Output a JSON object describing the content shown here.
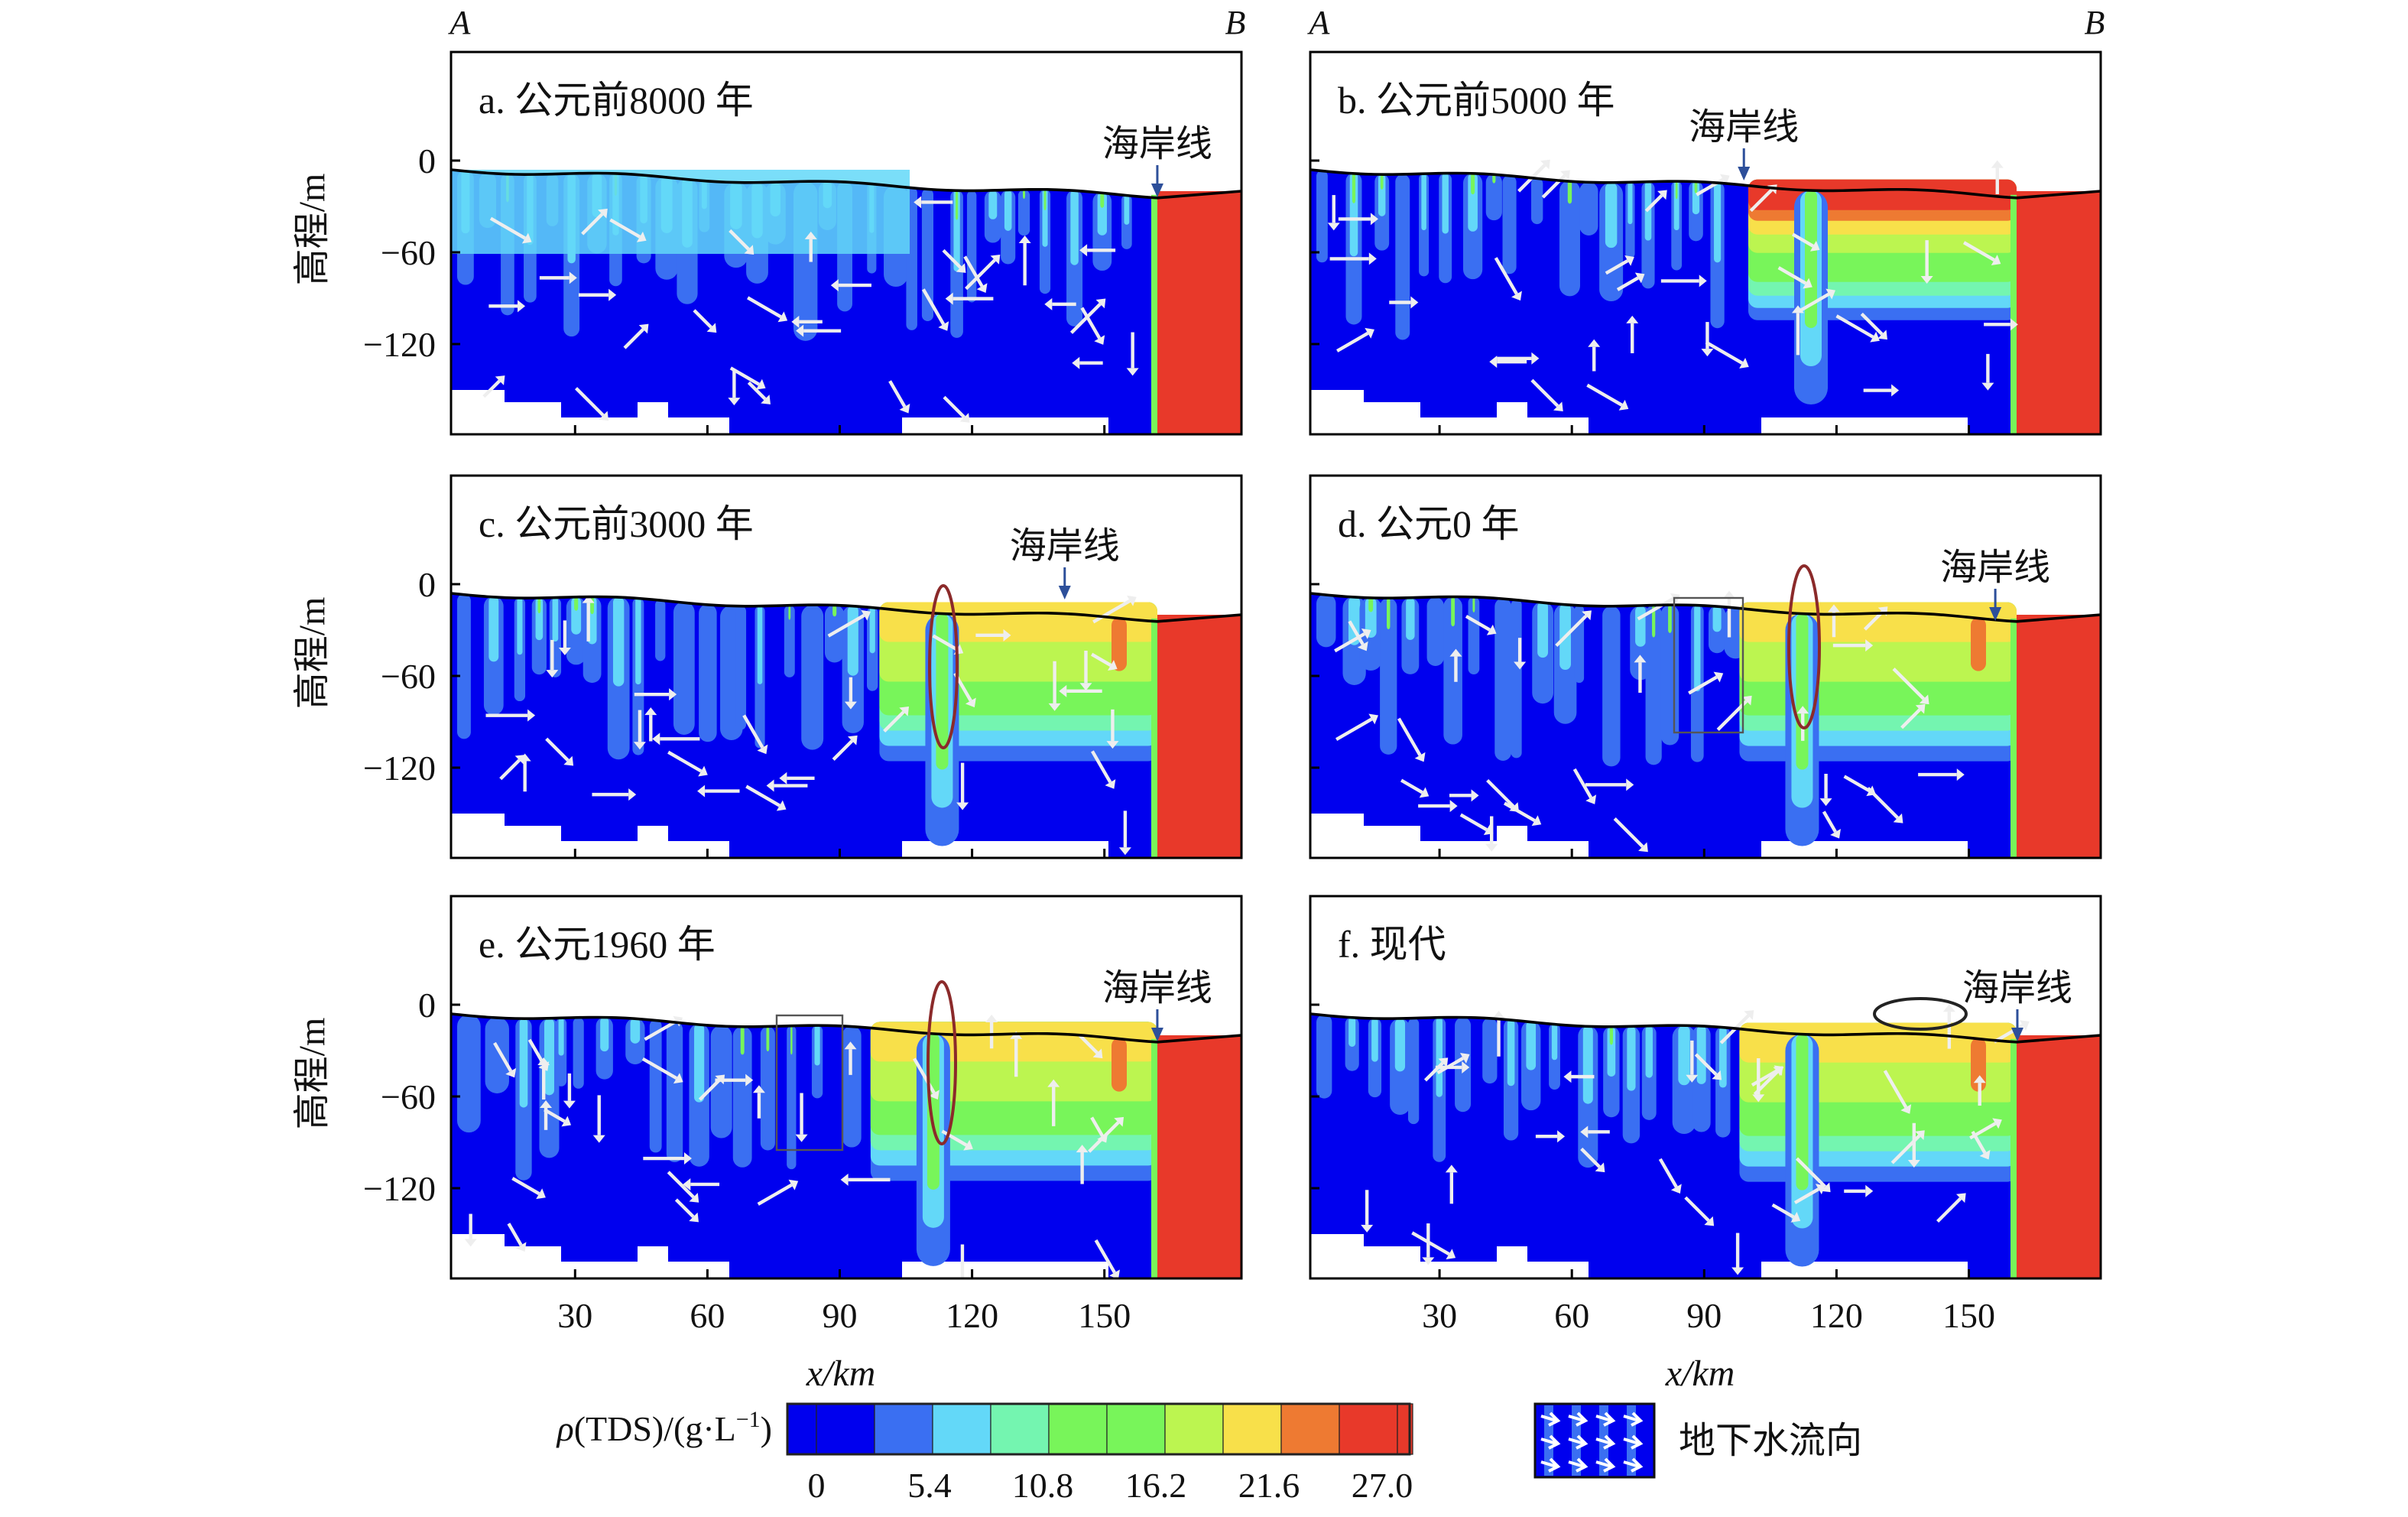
{
  "chart_data": {
    "type": "heatmap",
    "subtype": "filled-contour cross-sections with flow vectors",
    "section_start_label": "A",
    "section_end_label": "B",
    "xlabel": "x/km",
    "ylabel": "高程/m",
    "x_ticks": [
      "30",
      "60",
      "90",
      "120",
      "150"
    ],
    "x_tick_values": [
      30,
      60,
      90,
      120,
      150
    ],
    "y_ticks": [
      "0",
      "−60",
      "−120"
    ],
    "y_tick_values": [
      0,
      -60,
      -120
    ],
    "coastline_label": "海岸线",
    "panels": [
      {
        "id": "a",
        "title": "a. 公元前8000 年",
        "coastline_km": 162,
        "saline_zone_km": null
      },
      {
        "id": "b",
        "title": "b. 公元前5000 年",
        "coastline_km": 99,
        "saline_zone_km": [
          100,
          160
        ]
      },
      {
        "id": "c",
        "title": "c. 公元前3000 年",
        "coastline_km": 141,
        "saline_zone_km": [
          99,
          160
        ]
      },
      {
        "id": "d",
        "title": "d. 公元0 年",
        "coastline_km": 156,
        "saline_zone_km": [
          98,
          160
        ]
      },
      {
        "id": "e",
        "title": "e. 公元1960 年",
        "coastline_km": 162,
        "saline_zone_km": [
          97,
          160
        ]
      },
      {
        "id": "f",
        "title": "f. 现代",
        "coastline_km": 161,
        "saline_zone_km": [
          98,
          161
        ]
      }
    ],
    "colorbar": {
      "label_prefix": "ρ",
      "label": "(TDS)/(g·L",
      "label_sup": "−1",
      "label_suffix": ")",
      "tick_labels": [
        "0",
        "5.4",
        "10.8",
        "16.2",
        "21.6",
        "27.0"
      ],
      "range": [
        0,
        27.0
      ],
      "colors": [
        "#0000ee",
        "#0000ee",
        "#3a6ff2",
        "#63d8f8",
        "#74f5b0",
        "#78f55a",
        "#78f55a",
        "#bcf550",
        "#f8e04a",
        "#ee7a32",
        "#e8392a",
        "#e8392a"
      ]
    },
    "flow_legend": "地下水流向"
  }
}
